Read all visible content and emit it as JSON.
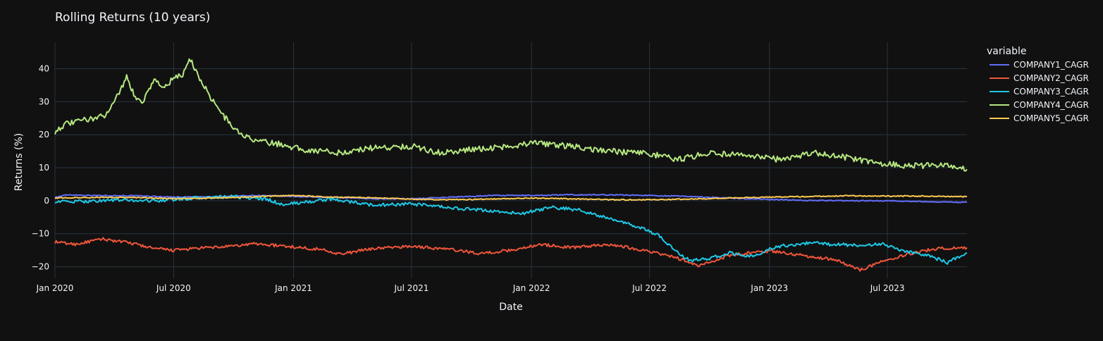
{
  "chart_data": {
    "type": "line",
    "title": "Rolling Returns (10 years)",
    "xlabel": "Date",
    "ylabel": "Returns (%)",
    "legend_title": "variable",
    "legend_position": "right",
    "grid": true,
    "background": "#111111",
    "gridline_color": "#283442",
    "xlim": [
      "2020-01-01",
      "2023-10-31"
    ],
    "ylim": [
      -23.5,
      48
    ],
    "x_ticks": [
      {
        "date": "2020-01-01",
        "label": "Jan 2020"
      },
      {
        "date": "2020-07-01",
        "label": "Jul 2020"
      },
      {
        "date": "2021-01-01",
        "label": "Jan 2021"
      },
      {
        "date": "2021-07-01",
        "label": "Jul 2021"
      },
      {
        "date": "2022-01-01",
        "label": "Jan 2022"
      },
      {
        "date": "2022-07-01",
        "label": "Jul 2022"
      },
      {
        "date": "2023-01-01",
        "label": "Jan 2023"
      },
      {
        "date": "2023-07-01",
        "label": "Jul 2023"
      }
    ],
    "y_ticks": [
      {
        "value": 40,
        "label": "40"
      },
      {
        "value": 30,
        "label": "30"
      },
      {
        "value": 20,
        "label": "20"
      },
      {
        "value": 10,
        "label": "10"
      },
      {
        "value": 0,
        "label": "0"
      },
      {
        "value": -10,
        "label": "−10"
      },
      {
        "value": -20,
        "label": "−20"
      }
    ],
    "series": [
      {
        "name": "COMPANY1_CAGR",
        "color": "#636efa",
        "points": [
          [
            "2020-01-01",
            1.0
          ],
          [
            "2020-01-20",
            1.8
          ],
          [
            "2020-03-01",
            1.6
          ],
          [
            "2020-05-01",
            1.5
          ],
          [
            "2020-07-01",
            1.1
          ],
          [
            "2020-09-01",
            1.2
          ],
          [
            "2020-11-01",
            1.6
          ],
          [
            "2021-01-01",
            1.3
          ],
          [
            "2021-03-01",
            1.0
          ],
          [
            "2021-05-01",
            0.6
          ],
          [
            "2021-07-01",
            0.6
          ],
          [
            "2021-09-01",
            1.1
          ],
          [
            "2021-11-01",
            1.6
          ],
          [
            "2022-01-01",
            1.6
          ],
          [
            "2022-03-01",
            1.8
          ],
          [
            "2022-05-01",
            1.8
          ],
          [
            "2022-07-01",
            1.6
          ],
          [
            "2022-09-01",
            1.3
          ],
          [
            "2022-11-01",
            0.8
          ],
          [
            "2023-01-01",
            0.4
          ],
          [
            "2023-03-01",
            0.1
          ],
          [
            "2023-05-01",
            0.0
          ],
          [
            "2023-07-01",
            0.0
          ],
          [
            "2023-09-01",
            -0.3
          ],
          [
            "2023-10-31",
            -0.5
          ]
        ]
      },
      {
        "name": "COMPANY2_CAGR",
        "color": "#EF553B",
        "points": [
          [
            "2020-01-01",
            -12.5
          ],
          [
            "2020-02-01",
            -13.2
          ],
          [
            "2020-03-15",
            -11.6
          ],
          [
            "2020-05-01",
            -13.0
          ],
          [
            "2020-06-01",
            -14.5
          ],
          [
            "2020-07-01",
            -15.0
          ],
          [
            "2020-08-15",
            -14.3
          ],
          [
            "2020-10-01",
            -13.8
          ],
          [
            "2020-11-01",
            -13.0
          ],
          [
            "2021-01-01",
            -14.0
          ],
          [
            "2021-02-15",
            -14.8
          ],
          [
            "2021-03-15",
            -16.2
          ],
          [
            "2021-05-01",
            -14.5
          ],
          [
            "2021-07-01",
            -13.8
          ],
          [
            "2021-09-01",
            -14.8
          ],
          [
            "2021-10-15",
            -16.0
          ],
          [
            "2021-12-01",
            -15.0
          ],
          [
            "2022-01-15",
            -13.2
          ],
          [
            "2022-03-01",
            -14.2
          ],
          [
            "2022-05-01",
            -13.2
          ],
          [
            "2022-07-01",
            -15.3
          ],
          [
            "2022-08-15",
            -17.5
          ],
          [
            "2022-09-15",
            -19.8
          ],
          [
            "2022-11-01",
            -16.5
          ],
          [
            "2023-01-01",
            -15.2
          ],
          [
            "2023-03-01",
            -16.8
          ],
          [
            "2023-04-15",
            -18.0
          ],
          [
            "2023-05-20",
            -21.0
          ],
          [
            "2023-07-01",
            -17.8
          ],
          [
            "2023-08-15",
            -15.5
          ],
          [
            "2023-09-15",
            -14.5
          ],
          [
            "2023-10-31",
            -14.2
          ]
        ]
      },
      {
        "name": "COMPANY3_CAGR",
        "color": "#00cc96",
        "stroke": "#1ec8e6",
        "points": [
          [
            "2020-01-01",
            -0.2
          ],
          [
            "2020-02-01",
            -0.3
          ],
          [
            "2020-04-01",
            0.2
          ],
          [
            "2020-06-01",
            0.0
          ],
          [
            "2020-08-01",
            0.8
          ],
          [
            "2020-10-01",
            1.2
          ],
          [
            "2020-11-20",
            0.5
          ],
          [
            "2020-12-15",
            -1.2
          ],
          [
            "2021-03-01",
            0.5
          ],
          [
            "2021-05-01",
            -1.3
          ],
          [
            "2021-07-01",
            -1.0
          ],
          [
            "2021-09-01",
            -2.2
          ],
          [
            "2021-11-15",
            -3.3
          ],
          [
            "2021-12-15",
            -4.0
          ],
          [
            "2022-02-01",
            -2.0
          ],
          [
            "2022-03-15",
            -2.8
          ],
          [
            "2022-05-01",
            -5.5
          ],
          [
            "2022-06-15",
            -8.0
          ],
          [
            "2022-07-15",
            -10.5
          ],
          [
            "2022-08-15",
            -16.0
          ],
          [
            "2022-09-01",
            -18.2
          ],
          [
            "2022-10-01",
            -17.5
          ],
          [
            "2022-11-01",
            -15.8
          ],
          [
            "2022-12-01",
            -17.0
          ],
          [
            "2023-01-15",
            -13.8
          ],
          [
            "2023-03-01",
            -12.8
          ],
          [
            "2023-04-15",
            -13.3
          ],
          [
            "2023-06-01",
            -13.5
          ],
          [
            "2023-06-20",
            -13.0
          ],
          [
            "2023-08-01",
            -15.5
          ],
          [
            "2023-09-01",
            -16.5
          ],
          [
            "2023-10-01",
            -18.8
          ],
          [
            "2023-10-31",
            -15.8
          ]
        ]
      },
      {
        "name": "COMPANY4_CAGR",
        "color": "#b6e880",
        "points": [
          [
            "2020-01-01",
            21.0
          ],
          [
            "2020-01-15",
            23.0
          ],
          [
            "2020-02-15",
            24.5
          ],
          [
            "2020-03-15",
            25.5
          ],
          [
            "2020-04-01",
            30.0
          ],
          [
            "2020-04-20",
            37.5
          ],
          [
            "2020-05-01",
            32.0
          ],
          [
            "2020-05-15",
            30.0
          ],
          [
            "2020-06-01",
            37.0
          ],
          [
            "2020-06-15",
            34.0
          ],
          [
            "2020-07-01",
            37.0
          ],
          [
            "2020-07-15",
            38.0
          ],
          [
            "2020-07-25",
            43.5
          ],
          [
            "2020-08-10",
            37.0
          ],
          [
            "2020-08-25",
            32.0
          ],
          [
            "2020-09-10",
            27.0
          ],
          [
            "2020-09-25",
            23.5
          ],
          [
            "2020-10-15",
            19.5
          ],
          [
            "2020-11-15",
            17.8
          ],
          [
            "2020-12-15",
            17.0
          ],
          [
            "2021-01-15",
            15.5
          ],
          [
            "2021-02-15",
            15.0
          ],
          [
            "2021-03-15",
            14.5
          ],
          [
            "2021-05-01",
            16.0
          ],
          [
            "2021-07-01",
            16.5
          ],
          [
            "2021-08-15",
            14.5
          ],
          [
            "2021-10-01",
            15.5
          ],
          [
            "2021-12-01",
            16.5
          ],
          [
            "2022-01-01",
            17.5
          ],
          [
            "2022-03-01",
            16.5
          ],
          [
            "2022-05-01",
            15.0
          ],
          [
            "2022-07-01",
            14.2
          ],
          [
            "2022-08-15",
            12.5
          ],
          [
            "2022-10-01",
            14.5
          ],
          [
            "2022-12-01",
            13.5
          ],
          [
            "2023-01-15",
            12.5
          ],
          [
            "2023-03-15",
            14.5
          ],
          [
            "2023-05-01",
            13.0
          ],
          [
            "2023-06-15",
            11.5
          ],
          [
            "2023-08-01",
            10.5
          ],
          [
            "2023-09-15",
            10.8
          ],
          [
            "2023-10-15",
            10.5
          ],
          [
            "2023-10-31",
            9.5
          ]
        ]
      },
      {
        "name": "COMPANY5_CAGR",
        "color": "#FECB52",
        "points": [
          [
            "2020-01-01",
            0.8
          ],
          [
            "2020-03-01",
            1.0
          ],
          [
            "2020-05-01",
            1.0
          ],
          [
            "2020-07-01",
            0.6
          ],
          [
            "2020-09-01",
            0.8
          ],
          [
            "2020-11-01",
            1.2
          ],
          [
            "2021-01-01",
            1.6
          ],
          [
            "2021-03-01",
            1.1
          ],
          [
            "2021-05-01",
            0.9
          ],
          [
            "2021-07-01",
            0.5
          ],
          [
            "2021-09-01",
            0.3
          ],
          [
            "2021-11-01",
            0.5
          ],
          [
            "2022-01-01",
            0.8
          ],
          [
            "2022-03-01",
            0.6
          ],
          [
            "2022-05-01",
            0.3
          ],
          [
            "2022-07-01",
            0.3
          ],
          [
            "2022-09-01",
            0.5
          ],
          [
            "2022-11-01",
            0.8
          ],
          [
            "2023-01-01",
            1.1
          ],
          [
            "2023-03-01",
            1.3
          ],
          [
            "2023-05-01",
            1.5
          ],
          [
            "2023-07-01",
            1.4
          ],
          [
            "2023-09-01",
            1.4
          ],
          [
            "2023-10-31",
            1.2
          ]
        ]
      }
    ]
  }
}
